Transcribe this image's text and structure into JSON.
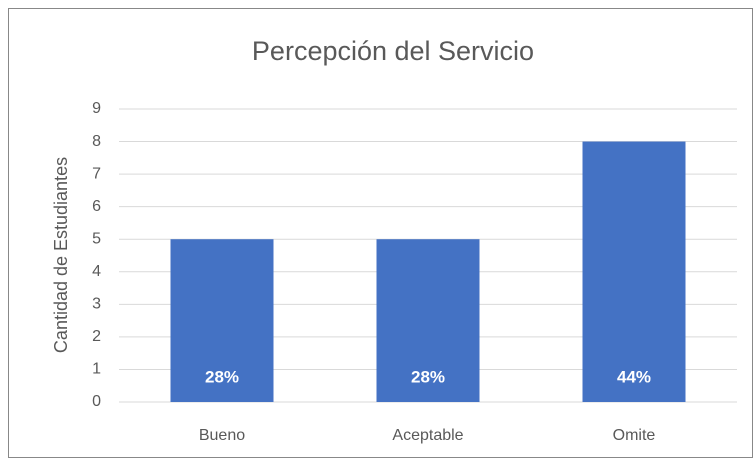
{
  "chart_data": {
    "type": "bar",
    "title": "Percepción del Servicio",
    "y_label": "Cantidad de Estudiantes",
    "categories": [
      "Bueno",
      "Aceptable",
      "Omite"
    ],
    "values": [
      5,
      5,
      8
    ],
    "data_labels": [
      "28%",
      "28%",
      "44%"
    ],
    "color": "#4472c4",
    "ylim": [
      0,
      9
    ],
    "yticks": [
      0,
      1,
      2,
      3,
      4,
      5,
      6,
      7,
      8,
      9
    ],
    "grid": true
  }
}
